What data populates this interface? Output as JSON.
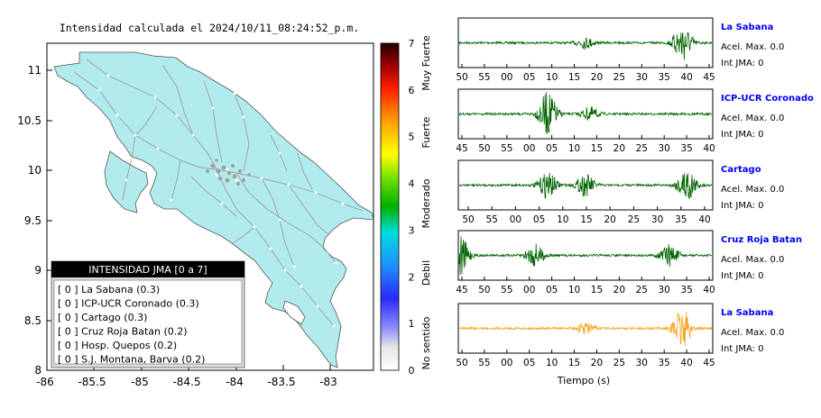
{
  "title": "Intensidad calculada el 2024/10/11_08:24:52_p.m.",
  "colors": {
    "land": "#b2ebee",
    "coast": "#555555",
    "roads": "#9e9e9e",
    "trace": "#006400",
    "trace_highlight": "#f5a623",
    "station_name": "#0000ff"
  },
  "map": {
    "x_ticks": [
      "-86",
      "-85.5",
      "-85",
      "-84.5",
      "-84",
      "-83.5",
      "-83"
    ],
    "y_ticks": [
      "11",
      "10.5",
      "10",
      "9.5",
      "9",
      "8.5",
      "8"
    ],
    "legend": {
      "title": "INTENSIDAD JMA [0 a 7]",
      "items": [
        "[ 0 ]  La Sabana (0.3)",
        "[ 0 ]  ICP-UCR Coronado (0.3)",
        "[ 0 ]  Cartago (0.3)",
        "[ 0 ]  Cruz Roja Batan (0.2)",
        "[ 0 ]  Hosp. Quepos (0.2)",
        "[ 0 ]  S.J. Montana, Barva (0.2)"
      ]
    }
  },
  "colorbar": {
    "ticks": [
      "0",
      "1",
      "2",
      "3",
      "4",
      "5",
      "6",
      "7"
    ],
    "labels": [
      "No sentido",
      "Debil",
      "Moderado",
      "Fuerte",
      "Muy Fuerte"
    ]
  },
  "chart_data": {
    "type": "line",
    "xlabel": "Tiempo (s)",
    "series": [
      {
        "name": "La Sabana",
        "acel": "Acel. Max. 0.0",
        "int": "Int JMA: 0",
        "ticks": [
          "50",
          "55",
          "00",
          "05",
          "10",
          "15",
          "20",
          "25",
          "30",
          "35",
          "40",
          "45"
        ],
        "bursts": [
          [
            17,
            0.25
          ],
          [
            40,
            0.9
          ]
        ],
        "highlight": false
      },
      {
        "name": "ICP-UCR Coronado",
        "acel": "Acel. Max. 0.0",
        "int": "Int JMA: 0",
        "ticks": [
          "45",
          "50",
          "55",
          "00",
          "05",
          "10",
          "15",
          "20",
          "25",
          "30",
          "35",
          "40"
        ],
        "bursts": [
          [
            8,
            1.0
          ],
          [
            18,
            0.3
          ]
        ],
        "highlight": false
      },
      {
        "name": "Cartago",
        "acel": "Acel. Max. 0.0",
        "int": "Int JMA: 0",
        "ticks": [
          "50",
          "55",
          "00",
          "05",
          "10",
          "15",
          "20",
          "25",
          "30",
          "35",
          "40"
        ],
        "bursts": [
          [
            8,
            0.6
          ],
          [
            17,
            0.5
          ],
          [
            41,
            0.8
          ]
        ],
        "highlight": false
      },
      {
        "name": "Cruz Roja Batan",
        "acel": "Acel. Max. 0.0",
        "int": "Int JMA: 0",
        "ticks": [
          "45",
          "50",
          "55",
          "00",
          "05",
          "10",
          "15",
          "20",
          "25",
          "30",
          "35",
          "40"
        ],
        "bursts": [
          [
            -13,
            1.0
          ],
          [
            5,
            0.5
          ],
          [
            37,
            0.5
          ]
        ],
        "highlight": false
      },
      {
        "name": "La Sabana",
        "acel": "Acel. Max. 0.0",
        "int": "Int JMA: 0",
        "ticks": [
          "50",
          "55",
          "00",
          "05",
          "10",
          "15",
          "20",
          "25",
          "30",
          "35",
          "40",
          "45"
        ],
        "bursts": [
          [
            17,
            0.25
          ],
          [
            40,
            0.9
          ]
        ],
        "highlight": true
      }
    ]
  }
}
